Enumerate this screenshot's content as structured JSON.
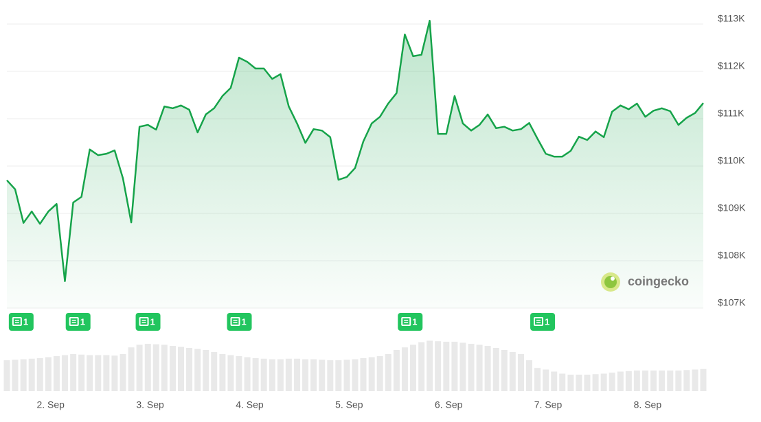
{
  "chart_data": {
    "type": "line",
    "color": "#16a34a",
    "grid": true,
    "xlim": [
      1.56,
      8.56
    ],
    "ylim": [
      107000,
      113000
    ],
    "xticks": [
      {
        "value": 2,
        "label": "2. Sep"
      },
      {
        "value": 3,
        "label": "3. Sep"
      },
      {
        "value": 4,
        "label": "4. Sep"
      },
      {
        "value": 5,
        "label": "5. Sep"
      },
      {
        "value": 6,
        "label": "6. Sep"
      },
      {
        "value": 7,
        "label": "7. Sep"
      },
      {
        "value": 8,
        "label": "8. Sep"
      }
    ],
    "yticks": [
      {
        "value": 107000,
        "label": "$107K"
      },
      {
        "value": 108000,
        "label": "$108K"
      },
      {
        "value": 109000,
        "label": "$109K"
      },
      {
        "value": 110000,
        "label": "$110K"
      },
      {
        "value": 111000,
        "label": "$111K"
      },
      {
        "value": 112000,
        "label": "$112K"
      },
      {
        "value": 113000,
        "label": "$113K"
      }
    ],
    "x": [
      1.56,
      1.643,
      1.727,
      1.81,
      1.893,
      1.977,
      2.06,
      2.143,
      2.227,
      2.31,
      2.393,
      2.477,
      2.56,
      2.643,
      2.727,
      2.81,
      2.893,
      2.977,
      3.06,
      3.143,
      3.227,
      3.31,
      3.393,
      3.477,
      3.56,
      3.643,
      3.727,
      3.81,
      3.893,
      3.977,
      4.06,
      4.143,
      4.227,
      4.31,
      4.393,
      4.477,
      4.56,
      4.643,
      4.727,
      4.81,
      4.893,
      4.977,
      5.06,
      5.143,
      5.227,
      5.31,
      5.393,
      5.477,
      5.56,
      5.643,
      5.727,
      5.81,
      5.893,
      5.977,
      6.06,
      6.143,
      6.227,
      6.31,
      6.393,
      6.477,
      6.56,
      6.643,
      6.727,
      6.81,
      6.893,
      6.977,
      7.06,
      7.143,
      7.227,
      7.31,
      7.393,
      7.477,
      7.56,
      7.643,
      7.727,
      7.81,
      7.893,
      7.977,
      8.06,
      8.143,
      8.227,
      8.31,
      8.393,
      8.477,
      8.56
    ],
    "values": [
      109700,
      109510,
      108800,
      109040,
      108780,
      109040,
      109200,
      107570,
      109230,
      109350,
      110350,
      110230,
      110260,
      110330,
      109740,
      108810,
      110830,
      110870,
      110770,
      111260,
      111220,
      111280,
      111190,
      110710,
      111090,
      111220,
      111480,
      111650,
      112290,
      112200,
      112060,
      112060,
      111840,
      111940,
      111260,
      110900,
      110490,
      110780,
      110750,
      110610,
      109710,
      109770,
      109960,
      110520,
      110900,
      111040,
      111320,
      111540,
      112780,
      112320,
      112350,
      113070,
      110680,
      110680,
      111480,
      110900,
      110750,
      110870,
      111090,
      110800,
      110830,
      110750,
      110780,
      110910,
      110580,
      110260,
      110200,
      110200,
      110320,
      110620,
      110550,
      110730,
      110610,
      111150,
      111280,
      111200,
      111320,
      111040,
      111170,
      111220,
      111160,
      110870,
      111020,
      111120,
      111330
    ],
    "volume": {
      "color": "#e9e9e9",
      "ylim": [
        0,
        100
      ],
      "values": [
        60,
        61,
        62,
        63,
        64,
        66,
        68,
        70,
        72,
        71,
        70,
        70,
        70,
        69,
        72,
        85,
        90,
        92,
        91,
        90,
        88,
        86,
        84,
        82,
        80,
        76,
        72,
        70,
        68,
        66,
        64,
        63,
        62,
        62,
        63,
        63,
        62,
        62,
        61,
        60,
        60,
        61,
        62,
        64,
        66,
        68,
        72,
        80,
        85,
        90,
        95,
        98,
        97,
        96,
        96,
        94,
        92,
        90,
        88,
        84,
        80,
        76,
        72,
        60,
        45,
        42,
        38,
        34,
        32,
        32,
        32,
        33,
        34,
        36,
        38,
        39,
        40,
        40,
        40,
        40,
        40,
        40,
        41,
        42,
        43
      ]
    },
    "news": [
      {
        "x": 1.697,
        "count": 1
      },
      {
        "x": 2.269,
        "count": 1
      },
      {
        "x": 2.972,
        "count": 1
      },
      {
        "x": 3.89,
        "count": 1
      },
      {
        "x": 5.607,
        "count": 1
      },
      {
        "x": 6.938,
        "count": 1
      }
    ],
    "watermark": "coingecko"
  }
}
